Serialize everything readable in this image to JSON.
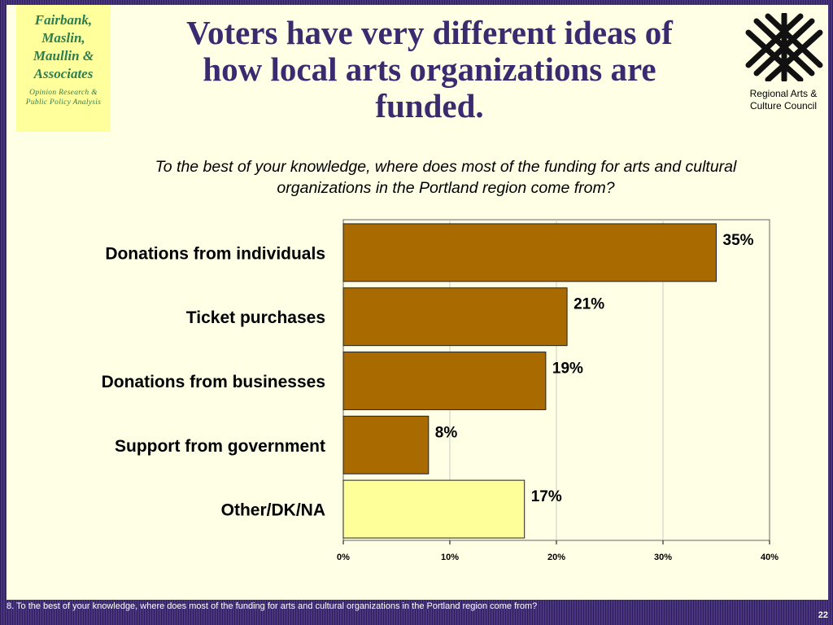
{
  "firm": {
    "name": "Fairbank,\nMaslin,\nMaullin &\nAssociates",
    "tagline": "Opinion Research &\nPublic Policy Analysis"
  },
  "title": "Voters have very different ideas of how local arts organizations are funded.",
  "client": {
    "name": "Regional Arts & Culture Council"
  },
  "question": "To the best of your knowledge, where does most of the funding for arts and cultural organizations in the Portland region come from?",
  "footer": "8. To the best of your knowledge, where does most of the funding for arts and cultural organizations in the Portland region come from?",
  "page_number": "22",
  "colors": {
    "bar": "#a96b00",
    "bar_other": "#ffff99",
    "title": "#3a2a70",
    "firm_text": "#2e7d4f",
    "firm_bg": "#ffff9c",
    "slide_bg": "#ffffe6",
    "frame": "#3d2a6b"
  },
  "chart_data": {
    "type": "bar",
    "orientation": "horizontal",
    "categories": [
      "Donations from individuals",
      "Ticket purchases",
      "Donations from businesses",
      "Support from government",
      "Other/DK/NA"
    ],
    "values": [
      35,
      21,
      19,
      8,
      17
    ],
    "value_labels": [
      "35%",
      "21%",
      "19%",
      "8%",
      "17%"
    ],
    "highlight": [
      false,
      false,
      false,
      false,
      true
    ],
    "xlim": [
      0,
      40
    ],
    "ticks": [
      0,
      10,
      20,
      30,
      40
    ],
    "tick_labels": [
      "0%",
      "10%",
      "20%",
      "30%",
      "40%"
    ],
    "grid": true,
    "title": "",
    "xlabel": "",
    "ylabel": ""
  }
}
